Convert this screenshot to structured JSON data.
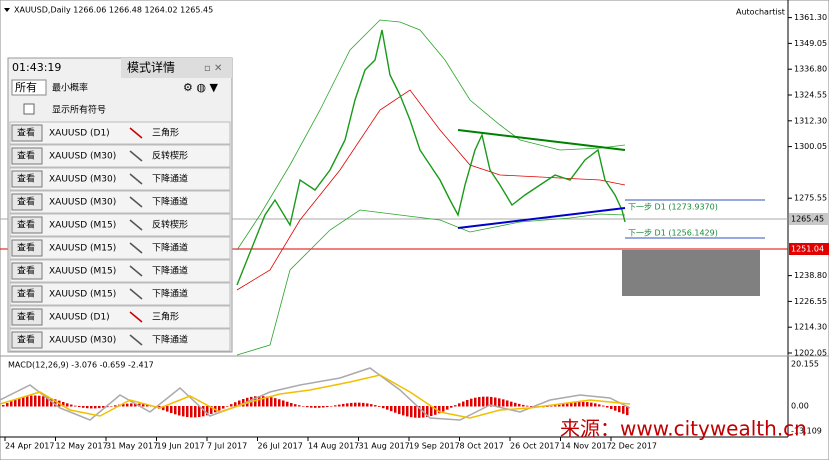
{
  "header": {
    "symbol_line": "XAUUSD,Daily  1266.06 1266.48 1264.02 1265.45",
    "autochartist": "Autochartist"
  },
  "price_axis": {
    "labels": [
      "1361.30",
      "1349.05",
      "1336.80",
      "1324.55",
      "1312.30",
      "1300.05",
      "1275.55",
      "1238.80",
      "1226.55",
      "1214.30",
      "1202.05"
    ],
    "current": "1265.45",
    "level": "1251.04"
  },
  "annotations": [
    "下一步 D1 (1273.9370)",
    "下一步 D1 (1256.1429)"
  ],
  "panel": {
    "title": "模式详情",
    "time": "01:43:19",
    "tab": "所有",
    "filter": "最小概率",
    "show_all": "显示所有符号",
    "rows": [
      [
        "查看",
        "XAUUSD (D1)",
        "三角形"
      ],
      [
        "查看",
        "XAUUSD (M30)",
        "反转楔形"
      ],
      [
        "查看",
        "XAUUSD (M30)",
        "下降通道"
      ],
      [
        "查看",
        "XAUUSD (M30)",
        "下降通道"
      ],
      [
        "查看",
        "XAUUSD (M15)",
        "反转楔形"
      ],
      [
        "查看",
        "XAUUSD (M15)",
        "下降通道"
      ],
      [
        "查看",
        "XAUUSD (M15)",
        "下降通道"
      ],
      [
        "查看",
        "XAUUSD (M15)",
        "下降通道"
      ],
      [
        "查看",
        "XAUUSD (D1)",
        "三角形"
      ],
      [
        "查看",
        "XAUUSD (M30)",
        "下降通道"
      ]
    ]
  },
  "macd": {
    "label": "MACD(12,26,9) -3.076 -0.659 -2.417",
    "axis": [
      "20.155",
      "0.00",
      "-13.109"
    ]
  },
  "dates": [
    "24 Apr 2017",
    "12 May 2017",
    "31 May 2017",
    "19 Jun 2017",
    "7 Jul 2017",
    "26 Jul 2017",
    "14 Aug 2017",
    "31 Aug 2017",
    "19 Sep 2017",
    "8 Oct 2017",
    "26 Oct 2017",
    "14 Nov 2017",
    "2 Dec 2017"
  ],
  "watermark": "来源：www.citywealth.cn"
}
